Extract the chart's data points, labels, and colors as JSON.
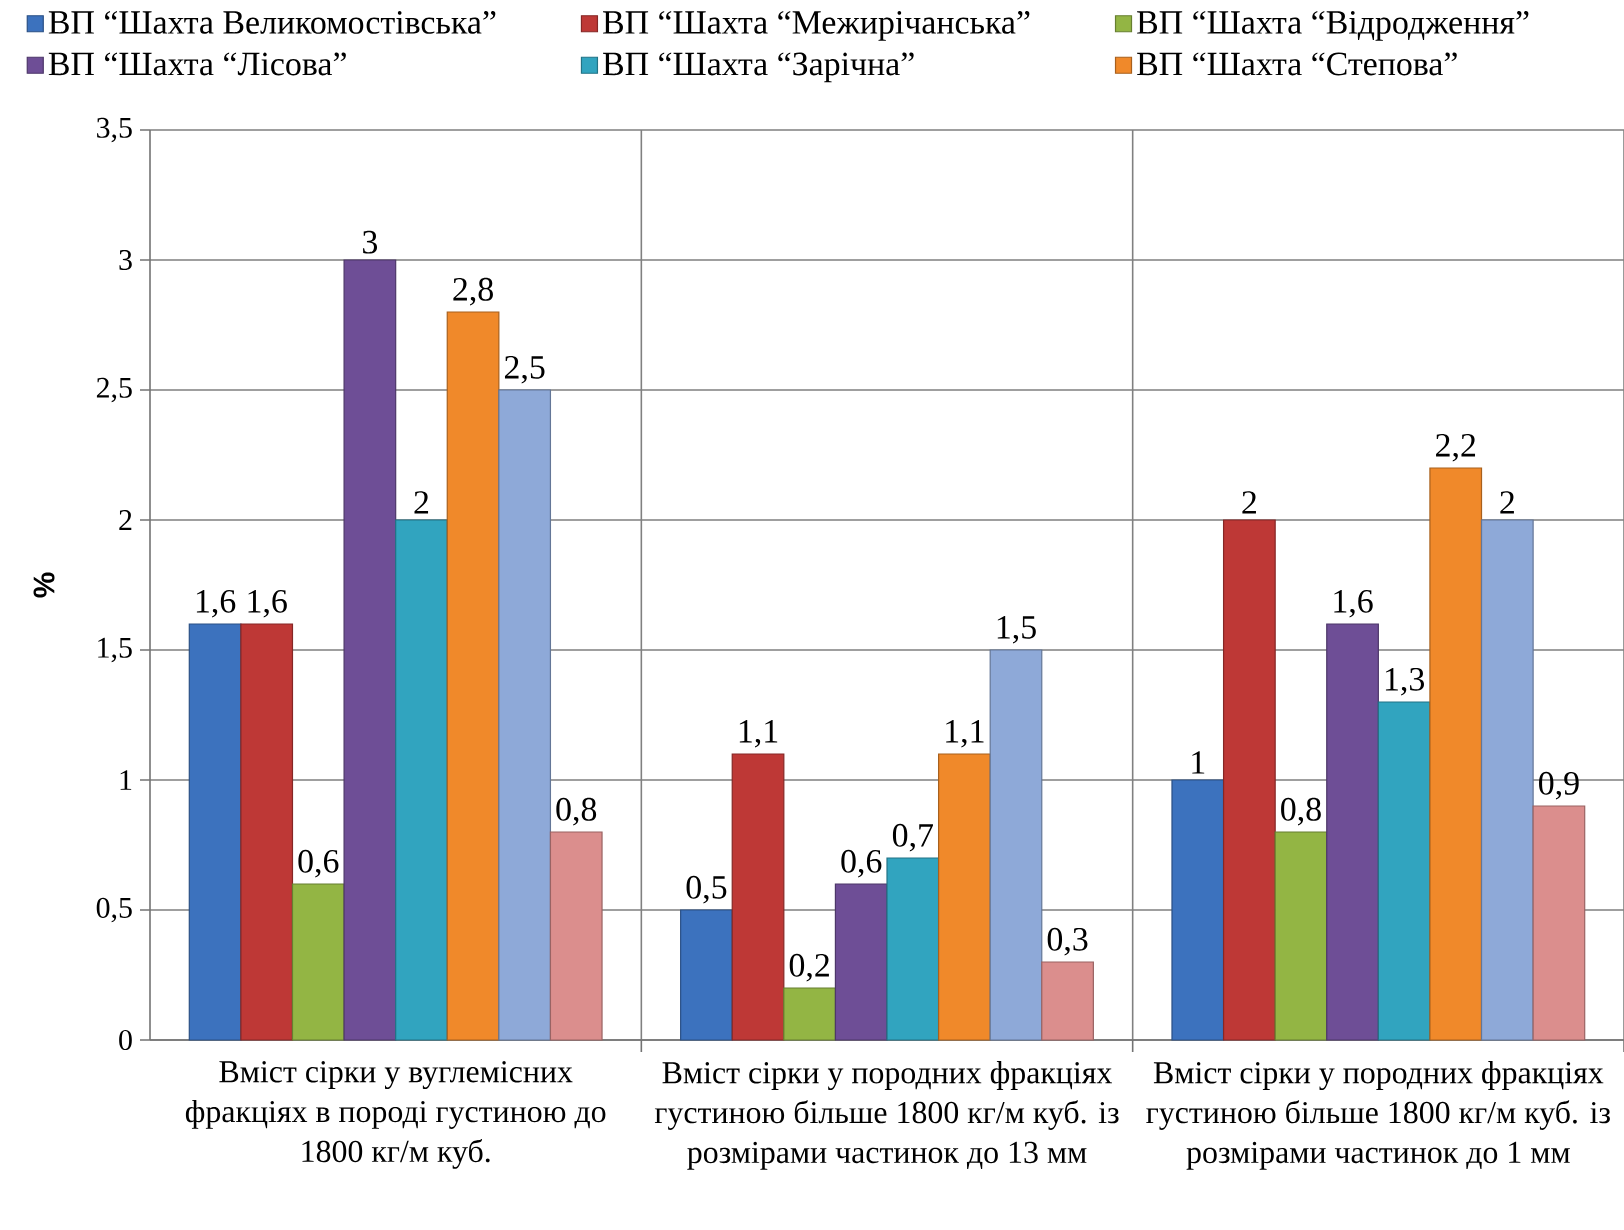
{
  "chart_data": {
    "type": "bar",
    "ylabel": "%",
    "categories": [
      "Вміст сірки у вуглемісних фракціях в породі густиною до 1800 кг/м куб.",
      "Вміст сірки у породних фракціях густиною більше 1800 кг/м куб. із розмірами частинок до 13 мм",
      "Вміст сірки у породних фракціях густиною більше 1800 кг/м куб. із розмірами частинок до 1 мм"
    ],
    "series": [
      {
        "name": "ВП “Шахта Великомостівська”",
        "color": "#3c72be",
        "values": [
          1.6,
          0.5,
          1
        ],
        "value_labels": [
          "1,6",
          "0,5",
          "1"
        ]
      },
      {
        "name": "ВП “Шахта “Межирічанська”",
        "color": "#be3836",
        "values": [
          1.6,
          1.1,
          2
        ],
        "value_labels": [
          "1,6",
          "1,1",
          "2"
        ]
      },
      {
        "name": "ВП “Шахта “Відродження”",
        "color": "#93b544",
        "values": [
          0.6,
          0.2,
          0.8
        ],
        "value_labels": [
          "0,6",
          "0,2",
          "0,8"
        ]
      },
      {
        "name": "ВП “Шахта “Лісова”",
        "color": "#6e4e96",
        "values": [
          3,
          0.6,
          1.6
        ],
        "value_labels": [
          "3",
          "0,6",
          "1,6"
        ]
      },
      {
        "name": "ВП “Шахта “Зарічна”",
        "color": "#31a4bf",
        "values": [
          2,
          0.7,
          1.3
        ],
        "value_labels": [
          "2",
          "0,7",
          "1,3"
        ]
      },
      {
        "name": "ВП “Шахта “Степова”",
        "color": "#f0892a",
        "values": [
          2.8,
          1.1,
          2.2
        ],
        "value_labels": [
          "2,8",
          "1,1",
          "2,2"
        ]
      },
      {
        "color": "#8ea9d8",
        "values": [
          2.5,
          1.5,
          2
        ],
        "value_labels": [
          "2,5",
          "1,5",
          "2"
        ]
      },
      {
        "color": "#db8e8d",
        "values": [
          0.8,
          0.3,
          0.9
        ],
        "value_labels": [
          "0,8",
          "0,3",
          "0,9"
        ]
      }
    ],
    "ylim": [
      0,
      3.5
    ],
    "yticks": [
      0,
      {
        "value": 0.5,
        "label": "0,5"
      },
      1,
      {
        "value": 1.5,
        "label": "1,5"
      },
      2,
      {
        "value": 2.5,
        "label": "2,5"
      },
      3,
      {
        "value": 3.5,
        "label": "3,5"
      }
    ],
    "grid": true,
    "legend": "top"
  }
}
